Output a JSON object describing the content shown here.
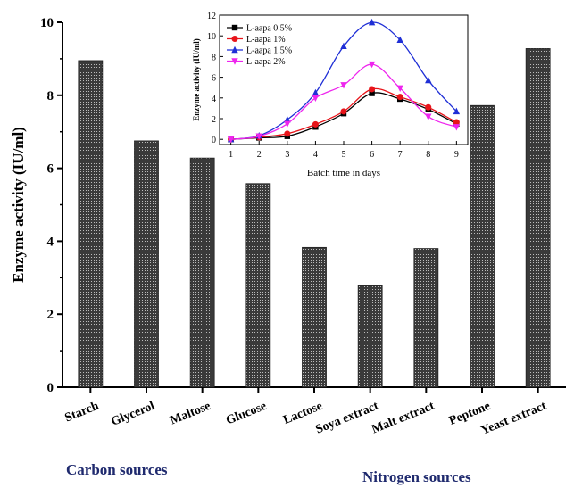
{
  "chart_data": [
    {
      "type": "bar",
      "ylabel": "Enzyme activity (IU/ml)",
      "xlabel": "",
      "categories": [
        "Starch",
        "Glycerol",
        "Maltose",
        "Glucose",
        "Lactose",
        "Soya extract",
        "Malt extract",
        "Peptone",
        "Yeast extract"
      ],
      "values": [
        8.95,
        6.75,
        6.28,
        5.58,
        3.83,
        2.78,
        3.8,
        7.72,
        9.28
      ],
      "ylim": [
        0,
        10
      ],
      "yticks": [
        "0",
        "2",
        "4",
        "6",
        "8",
        "10"
      ],
      "bar_color": "#2b2b2b",
      "group_labels": {
        "carbon": "Carbon sources",
        "nitrogen": "Nitrogen sources"
      },
      "group_label_color": "#1f2a6e",
      "grid": false
    },
    {
      "type": "line",
      "inset": true,
      "xlabel": "Batch time in days",
      "ylabel": "Enzyme activity (IU/ml)",
      "x": [
        1,
        2,
        3,
        4,
        5,
        6,
        7,
        8,
        9
      ],
      "xlim": [
        0.6,
        9.4
      ],
      "ylim": [
        -0.5,
        12
      ],
      "yticks": [
        "0",
        "2",
        "4",
        "6",
        "8",
        "10",
        "12"
      ],
      "legend_position": "top-left",
      "series": [
        {
          "name": "L-aapa 0.5%",
          "values": [
            0,
            0.15,
            0.3,
            1.2,
            2.5,
            4.45,
            3.9,
            2.9,
            1.5
          ],
          "color": "#000000",
          "marker": "square"
        },
        {
          "name": "L-aapa 1%",
          "values": [
            0,
            0.2,
            0.55,
            1.45,
            2.7,
            4.85,
            4.1,
            3.1,
            1.65
          ],
          "color": "#e8141a",
          "marker": "circle"
        },
        {
          "name": "L-aapa 1.5%",
          "values": [
            0,
            0.35,
            1.9,
            4.5,
            9.0,
            11.3,
            9.6,
            5.7,
            2.7
          ],
          "color": "#1f2fd6",
          "marker": "triangle-up"
        },
        {
          "name": "L-aapa 2%",
          "values": [
            0,
            0.3,
            1.5,
            4.0,
            5.25,
            7.25,
            4.95,
            2.2,
            1.2
          ],
          "color": "#ee25ee",
          "marker": "triangle-down"
        }
      ],
      "grid": false
    }
  ]
}
